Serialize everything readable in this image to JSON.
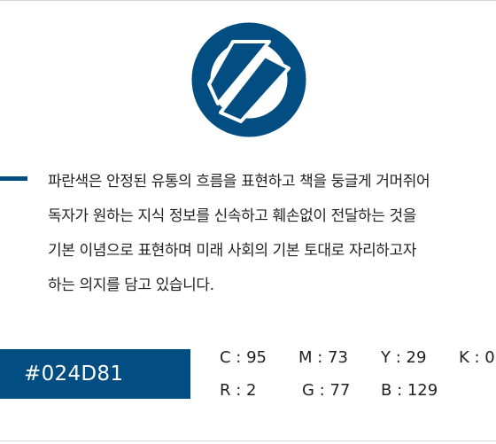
{
  "brand": {
    "color": "#024D81",
    "logo_icon": "book-flow-emblem-icon"
  },
  "description_lines": [
    "파란색은 안정된 유통의 흐름을 표현하고 책을 둥글게 거머쥐어",
    "독자가 원하는 지식 정보를 신속하고 훼손없이 전달하는 것을",
    "기본 이념으로 표현하며 미래 사회의 기본 토대로 자리하고자",
    "하는 의지를 담고 있습니다."
  ],
  "color_spec": {
    "hex": "#024D81",
    "cmyk": {
      "c": "C : 95",
      "m": "M : 73",
      "y": "Y : 29",
      "k": "K : 0"
    },
    "rgb": {
      "r": "R : 2",
      "g": "G : 77",
      "b": "B : 129"
    }
  }
}
